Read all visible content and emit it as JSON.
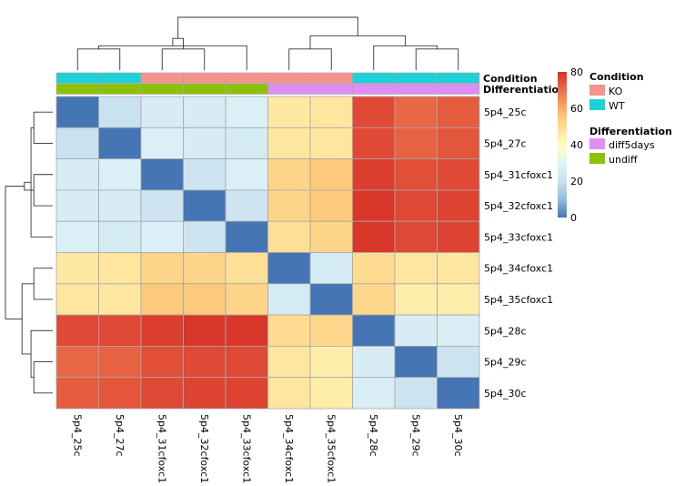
{
  "chart_data": {
    "type": "heatmap",
    "title": "",
    "samples": [
      "5p4_25c",
      "5p4_27c",
      "5p4_31cfoxc1",
      "5p4_32cfoxc1",
      "5p4_33cfoxc1",
      "5p4_34cfoxc1",
      "5p4_35cfoxc1",
      "5p4_28c",
      "5p4_29c",
      "5p4_30c"
    ],
    "matrix": [
      [
        0,
        20,
        26,
        26,
        28,
        46,
        47,
        76,
        71,
        73
      ],
      [
        20,
        0,
        28,
        26,
        25,
        47,
        47,
        76,
        72,
        74
      ],
      [
        26,
        28,
        0,
        22,
        28,
        52,
        55,
        78,
        75,
        76
      ],
      [
        26,
        26,
        22,
        0,
        22,
        52,
        55,
        79,
        76,
        77
      ],
      [
        28,
        25,
        28,
        22,
        0,
        49,
        52,
        79,
        76,
        77
      ],
      [
        46,
        47,
        52,
        52,
        49,
        0,
        25,
        50,
        47,
        47
      ],
      [
        47,
        47,
        55,
        55,
        52,
        25,
        0,
        51,
        45,
        45
      ],
      [
        76,
        76,
        78,
        79,
        79,
        50,
        51,
        0,
        26,
        27
      ],
      [
        71,
        72,
        75,
        76,
        76,
        47,
        45,
        26,
        0,
        21
      ],
      [
        73,
        74,
        76,
        77,
        77,
        47,
        45,
        27,
        21,
        0
      ]
    ],
    "colorscale": {
      "min": 0,
      "max": 80,
      "stops": [
        [
          0,
          "#4575B4"
        ],
        [
          10,
          "#91BFDB"
        ],
        [
          20,
          "#C9E2EF"
        ],
        [
          30,
          "#E0F3F8"
        ],
        [
          40,
          "#FFFFBF"
        ],
        [
          55,
          "#FDC97A"
        ],
        [
          65,
          "#F48E5A"
        ],
        [
          80,
          "#D73027"
        ]
      ],
      "ticks": [
        0,
        20,
        40,
        60,
        80
      ]
    },
    "annotations": {
      "rows": [
        "Condition",
        "Differentiation"
      ],
      "condition": [
        "WT",
        "WT",
        "KO",
        "KO",
        "KO",
        "KO",
        "KO",
        "WT",
        "WT",
        "WT"
      ],
      "differentiation": [
        "undiff",
        "undiff",
        "undiff",
        "undiff",
        "undiff",
        "diff5days",
        "diff5days",
        "diff5days",
        "diff5days",
        "diff5days"
      ]
    },
    "legend": {
      "condition_title": "Condition",
      "condition_items": [
        {
          "label": "KO",
          "color": "#F4948B"
        },
        {
          "label": "WT",
          "color": "#1ED1D8"
        }
      ],
      "differentiation_title": "Differentiation",
      "differentiation_items": [
        {
          "label": "diff5days",
          "color": "#DE8EF2"
        },
        {
          "label": "undiff",
          "color": "#8CC10A"
        }
      ]
    },
    "dendrogram": {
      "clusters": [
        [
          0,
          1
        ],
        [
          2,
          3
        ],
        [
          10,
          4
        ],
        [
          11,
          12
        ],
        [
          5,
          6
        ],
        [
          8,
          9
        ],
        [
          7,
          15
        ],
        [
          14,
          16
        ],
        [
          13,
          17
        ]
      ],
      "heights": [
        0.4,
        0.4,
        0.46,
        0.6,
        0.4,
        0.4,
        0.46,
        0.65,
        1.0
      ]
    }
  }
}
